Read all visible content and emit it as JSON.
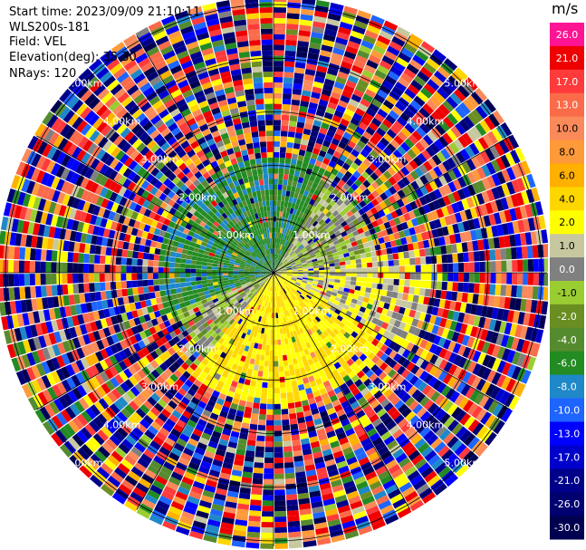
{
  "info": {
    "start_time": "Start time: 2023/09/09 21:10:11",
    "instrument": "WLS200s-181",
    "field": "Field: VEL",
    "elevation": "Elevation(deg): 35.30",
    "nrays": "NRays: 120"
  },
  "colorbar": {
    "unit": "m/s",
    "levels": [
      {
        "label": "26.0",
        "color": "#ff1493"
      },
      {
        "label": "21.0",
        "color": "#ee0000"
      },
      {
        "label": "17.0",
        "color": "#ff3a3a"
      },
      {
        "label": "13.0",
        "color": "#fa6b4a"
      },
      {
        "label": "10.0",
        "color": "#fa8a5a"
      },
      {
        "label": "8.0",
        "color": "#ff9a3a"
      },
      {
        "label": "6.0",
        "color": "#ffb000"
      },
      {
        "label": "4.0",
        "color": "#ffd700"
      },
      {
        "label": "2.0",
        "color": "#ffff00"
      },
      {
        "label": "1.0",
        "color": "#c8c8a0"
      },
      {
        "label": "0.0",
        "color": "#808080"
      },
      {
        "label": "-1.0",
        "color": "#9acd32"
      },
      {
        "label": "-2.0",
        "color": "#6b8e23"
      },
      {
        "label": "-4.0",
        "color": "#558b2f"
      },
      {
        "label": "-6.0",
        "color": "#228b22"
      },
      {
        "label": "-8.0",
        "color": "#1e88c8"
      },
      {
        "label": "-10.0",
        "color": "#1e64ff"
      },
      {
        "label": "-13.0",
        "color": "#0000ff"
      },
      {
        "label": "-17.0",
        "color": "#0000cd"
      },
      {
        "label": "-21.0",
        "color": "#00008b"
      },
      {
        "label": "-26.0",
        "color": "#000070"
      },
      {
        "label": "-30.0",
        "color": "#000050"
      }
    ]
  },
  "chart_data": {
    "type": "heatmap",
    "projection": "polar",
    "field": "VEL",
    "units": "m/s",
    "nrays": 120,
    "range_rings_km": [
      1,
      2,
      3,
      4,
      5
    ],
    "range_labels": [
      "1.00km",
      "2.00km",
      "3.00km",
      "4.00km",
      "5.00km"
    ],
    "max_range_km": 5.1,
    "gate_km": 0.1,
    "value_range": [
      -30,
      26
    ],
    "sectors_description": [
      {
        "azimuth_deg": [
          250,
          30
        ],
        "range_km": [
          0,
          2.2
        ],
        "dominant_mps": -5
      },
      {
        "azimuth_deg": [
          30,
          80
        ],
        "range_km": [
          0,
          2.0
        ],
        "dominant_mps": 0
      },
      {
        "azimuth_deg": [
          80,
          120
        ],
        "range_km": [
          0,
          3.0
        ],
        "dominant_mps": 2
      },
      {
        "azimuth_deg": [
          120,
          220
        ],
        "range_km": [
          0,
          2.5
        ],
        "dominant_mps": 4
      },
      {
        "azimuth_deg": [
          220,
          250
        ],
        "range_km": [
          0,
          2.0
        ],
        "dominant_mps": 0
      },
      {
        "azimuth_deg": [
          0,
          360
        ],
        "range_km": [
          3.0,
          5.1
        ],
        "dominant_mps": "noisy"
      }
    ]
  }
}
